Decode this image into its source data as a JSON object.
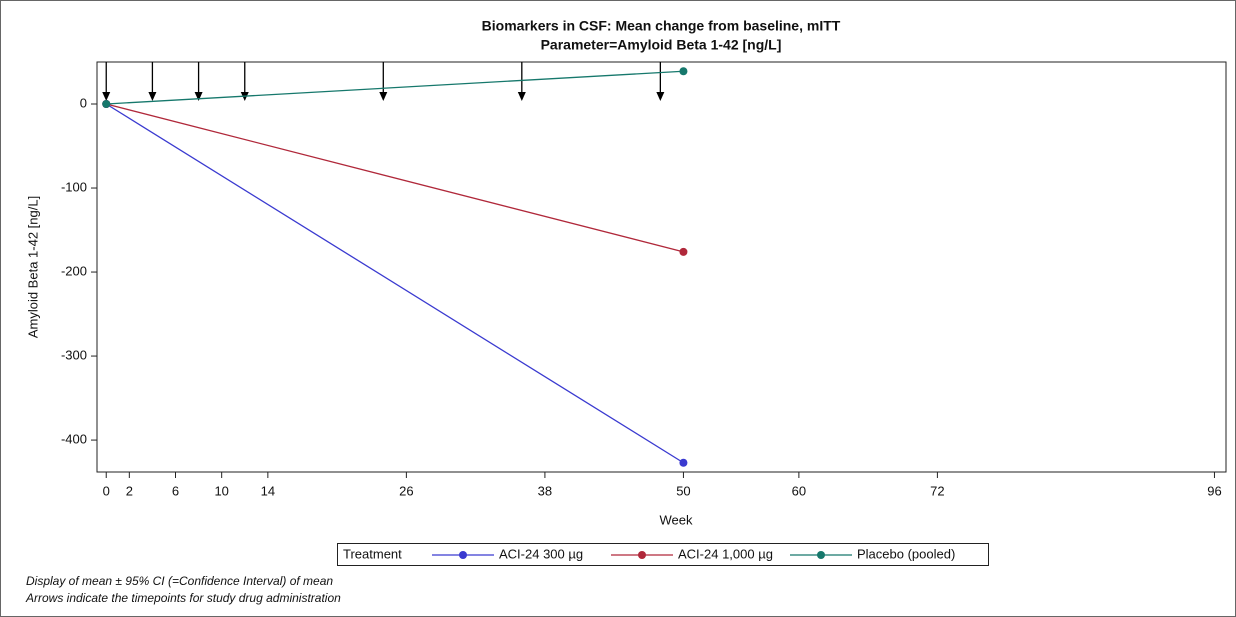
{
  "chart_data": {
    "type": "line",
    "title": "Biomarkers in CSF: Mean change from baseline, mITT",
    "subtitle": "Parameter=Amyloid Beta 1-42 [ng/L]",
    "x_label": "Week",
    "y_label": "Amyloid Beta 1-42 [ng/L]",
    "legend_title": "Treatment",
    "xlim": [
      -0.8,
      97
    ],
    "ylim": [
      -438,
      50
    ],
    "xticks": [
      0,
      2,
      6,
      10,
      14,
      26,
      38,
      50,
      60,
      72,
      96
    ],
    "yticks": [
      -400,
      -300,
      -200,
      -100,
      0
    ],
    "arrows": [
      0,
      4,
      8,
      12,
      24,
      36,
      48
    ],
    "series": [
      {
        "name": "ACI-24 300 µg",
        "color": "#3a3ad0",
        "x": [
          0,
          50
        ],
        "values": [
          0,
          -427
        ]
      },
      {
        "name": "ACI-24 1,000 µg",
        "color": "#b0283a",
        "x": [
          0,
          50
        ],
        "values": [
          0,
          -176
        ]
      },
      {
        "name": "Placebo (pooled)",
        "color": "#16786c",
        "x": [
          0,
          50
        ],
        "values": [
          0,
          39
        ]
      }
    ],
    "notes": [
      "Display of mean ± 95% CI (=Confidence Interval) of mean",
      "Arrows indicate the timepoints for study drug administration"
    ]
  }
}
